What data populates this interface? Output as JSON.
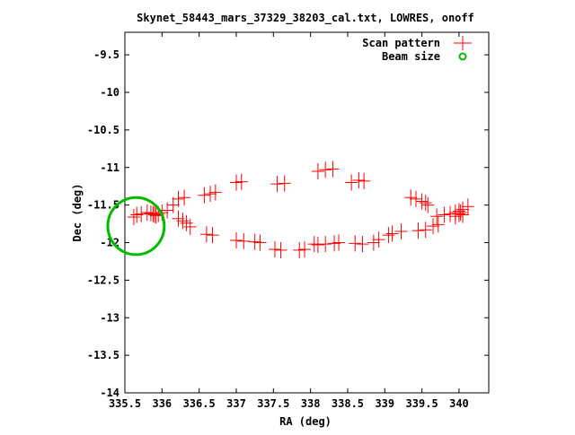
{
  "chart_data": {
    "type": "scatter",
    "title": "Skynet_58443_mars_37329_38203_cal.txt, LOWRES, onoff",
    "xlabel": "RA (deg)",
    "ylabel": "Dec (deg)",
    "xlim": [
      335.5,
      340.4
    ],
    "ylim": [
      -14,
      -9.2
    ],
    "x_ticks": [
      335.5,
      336,
      336.5,
      337,
      337.5,
      338,
      338.5,
      339,
      339.5,
      340
    ],
    "x_tick_labels": [
      "335.5",
      "336",
      "336.5",
      "337",
      "337.5",
      "338",
      "338.5",
      "339",
      "339.5",
      "340"
    ],
    "y_ticks": [
      -9.5,
      -10,
      -10.5,
      -11,
      -11.5,
      -12,
      -12.5,
      -13,
      -13.5,
      -14
    ],
    "y_tick_labels": [
      "-9.5",
      "-10",
      "-10.5",
      "-11",
      "-11.5",
      "-12",
      "-12.5",
      "-13",
      "-13.5",
      "-14"
    ],
    "grid": false,
    "legend": "top-right",
    "series": [
      {
        "name": "Scan pattern",
        "marker": "plus",
        "color": "#ff0000",
        "points": [
          [
            335.62,
            -11.66
          ],
          [
            335.66,
            -11.63
          ],
          [
            335.72,
            -11.62
          ],
          [
            335.8,
            -11.6
          ],
          [
            335.85,
            -11.61
          ],
          [
            335.88,
            -11.62
          ],
          [
            335.9,
            -11.63
          ],
          [
            335.92,
            -11.64
          ],
          [
            335.95,
            -11.62
          ],
          [
            336.0,
            -11.6
          ],
          [
            336.07,
            -11.57
          ],
          [
            336.15,
            -11.5
          ],
          [
            336.22,
            -11.42
          ],
          [
            336.3,
            -11.4
          ],
          [
            336.22,
            -11.68
          ],
          [
            336.28,
            -11.71
          ],
          [
            336.33,
            -11.74
          ],
          [
            336.38,
            -11.79
          ],
          [
            336.57,
            -11.37
          ],
          [
            336.65,
            -11.35
          ],
          [
            336.72,
            -11.33
          ],
          [
            336.6,
            -11.89
          ],
          [
            336.68,
            -11.9
          ],
          [
            337.0,
            -11.2
          ],
          [
            337.07,
            -11.19
          ],
          [
            337.0,
            -11.97
          ],
          [
            337.1,
            -11.98
          ],
          [
            337.25,
            -11.99
          ],
          [
            337.32,
            -12.0
          ],
          [
            337.52,
            -12.09
          ],
          [
            337.6,
            -12.1
          ],
          [
            337.55,
            -11.22
          ],
          [
            337.65,
            -11.21
          ],
          [
            337.85,
            -12.1
          ],
          [
            337.92,
            -12.09
          ],
          [
            338.05,
            -12.02
          ],
          [
            338.1,
            -12.03
          ],
          [
            338.2,
            -12.02
          ],
          [
            338.32,
            -12.01
          ],
          [
            338.38,
            -12.0
          ],
          [
            338.1,
            -11.05
          ],
          [
            338.2,
            -11.03
          ],
          [
            338.3,
            -11.02
          ],
          [
            338.55,
            -11.2
          ],
          [
            338.65,
            -11.17
          ],
          [
            338.72,
            -11.18
          ],
          [
            338.6,
            -12.01
          ],
          [
            338.7,
            -12.02
          ],
          [
            338.85,
            -12.0
          ],
          [
            338.92,
            -11.96
          ],
          [
            339.05,
            -11.9
          ],
          [
            339.1,
            -11.88
          ],
          [
            339.22,
            -11.85
          ],
          [
            339.35,
            -11.4
          ],
          [
            339.42,
            -11.42
          ],
          [
            339.5,
            -11.45
          ],
          [
            339.55,
            -11.47
          ],
          [
            339.58,
            -11.5
          ],
          [
            339.45,
            -11.84
          ],
          [
            339.55,
            -11.83
          ],
          [
            339.65,
            -11.78
          ],
          [
            339.72,
            -11.76
          ],
          [
            339.7,
            -11.65
          ],
          [
            339.8,
            -11.63
          ],
          [
            339.88,
            -11.62
          ],
          [
            339.95,
            -11.6
          ],
          [
            340.0,
            -11.58
          ],
          [
            340.05,
            -11.56
          ],
          [
            340.12,
            -11.52
          ],
          [
            339.95,
            -11.65
          ],
          [
            340.0,
            -11.62
          ],
          [
            340.02,
            -11.6
          ],
          [
            340.05,
            -11.63
          ]
        ]
      },
      {
        "name": "Beam size",
        "marker": "circle",
        "color": "#00bb00",
        "center": [
          335.65,
          -11.78
        ],
        "radius_deg": 0.38
      }
    ]
  }
}
